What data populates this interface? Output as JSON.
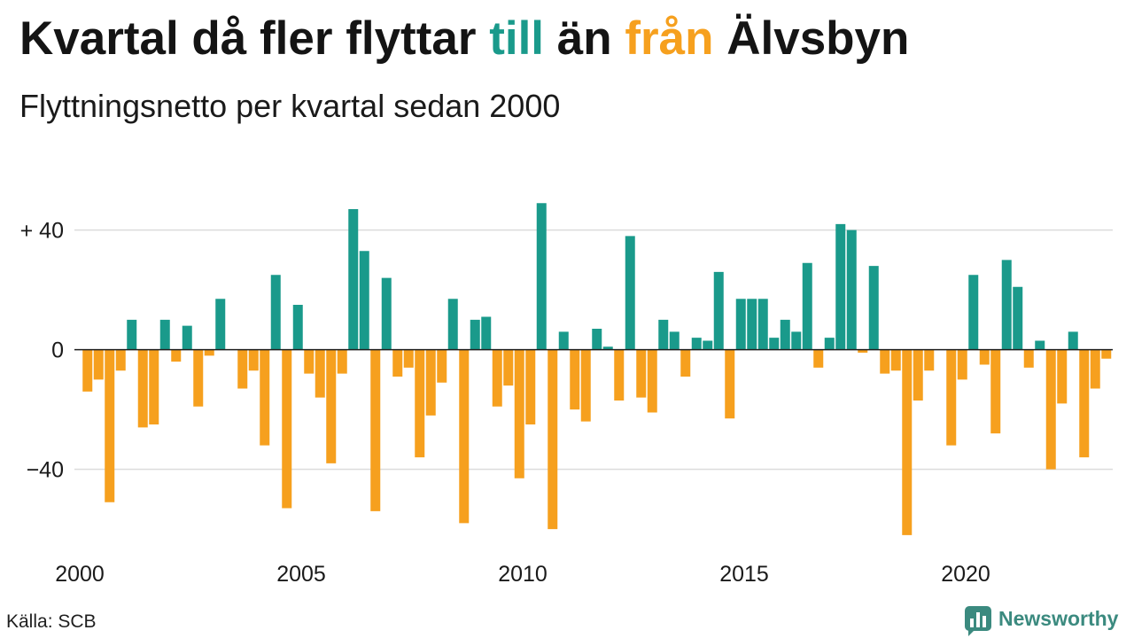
{
  "chart_data": {
    "type": "bar",
    "title": {
      "start": "Kvartal då fler flyttar",
      "positive_word": "till",
      "middle": "än",
      "negative_word": "från",
      "end": "Älvsbyn"
    },
    "subtitle": "Flyttningsnetto per kvartal sedan 2000",
    "x_ticks": [
      2000,
      2005,
      2010,
      2015,
      2020
    ],
    "y_ticks": [
      {
        "value": 40,
        "label": "+ 40"
      },
      {
        "value": 0,
        "label": "0"
      },
      {
        "value": -40,
        "label": "−40"
      }
    ],
    "xlim": [
      "2000Q1",
      "2023Q1"
    ],
    "ylim": [
      -65,
      55
    ],
    "grid": true,
    "colors": {
      "positive": "#1a9a8b",
      "negative": "#f6a01e",
      "grid": "#dcdcdc",
      "baseline": "#1e1e1e"
    },
    "x": [
      "2000Q1",
      "2000Q2",
      "2000Q3",
      "2000Q4",
      "2001Q1",
      "2001Q2",
      "2001Q3",
      "2001Q4",
      "2002Q1",
      "2002Q2",
      "2002Q3",
      "2002Q4",
      "2003Q1",
      "2003Q2",
      "2003Q3",
      "2003Q4",
      "2004Q1",
      "2004Q2",
      "2004Q3",
      "2004Q4",
      "2005Q1",
      "2005Q2",
      "2005Q3",
      "2005Q4",
      "2006Q1",
      "2006Q2",
      "2006Q3",
      "2006Q4",
      "2007Q1",
      "2007Q2",
      "2007Q3",
      "2007Q4",
      "2008Q1",
      "2008Q2",
      "2008Q3",
      "2008Q4",
      "2009Q1",
      "2009Q2",
      "2009Q3",
      "2009Q4",
      "2010Q1",
      "2010Q2",
      "2010Q3",
      "2010Q4",
      "2011Q1",
      "2011Q2",
      "2011Q3",
      "2011Q4",
      "2012Q1",
      "2012Q2",
      "2012Q3",
      "2012Q4",
      "2013Q1",
      "2013Q2",
      "2013Q3",
      "2013Q4",
      "2014Q1",
      "2014Q2",
      "2014Q3",
      "2014Q4",
      "2015Q1",
      "2015Q2",
      "2015Q3",
      "2015Q4",
      "2016Q1",
      "2016Q2",
      "2016Q3",
      "2016Q4",
      "2017Q1",
      "2017Q2",
      "2017Q3",
      "2017Q4",
      "2018Q1",
      "2018Q2",
      "2018Q3",
      "2018Q4",
      "2019Q1",
      "2019Q2",
      "2019Q3",
      "2019Q4",
      "2020Q1",
      "2020Q2",
      "2020Q3",
      "2020Q4",
      "2021Q1",
      "2021Q2",
      "2021Q3",
      "2021Q4",
      "2022Q1",
      "2022Q2",
      "2022Q3",
      "2022Q4",
      "2023Q1"
    ],
    "values": [
      -14,
      -10,
      -51,
      -7,
      10,
      -26,
      -25,
      10,
      -4,
      8,
      -19,
      -2,
      17,
      0,
      -13,
      -7,
      -32,
      25,
      -53,
      15,
      -8,
      -16,
      -38,
      -8,
      47,
      33,
      -54,
      24,
      -9,
      -6,
      -36,
      -22,
      -11,
      17,
      -58,
      10,
      11,
      -19,
      -12,
      -43,
      -25,
      49,
      -60,
      6,
      -20,
      -24,
      7,
      1,
      -17,
      38,
      -16,
      -21,
      10,
      6,
      -9,
      4,
      3,
      26,
      -23,
      17,
      17,
      17,
      4,
      10,
      6,
      29,
      -6,
      4,
      42,
      40,
      -1,
      28,
      -8,
      -7,
      -62,
      -17,
      -7,
      0,
      -32,
      -10,
      25,
      -5,
      -28,
      30,
      21,
      -6,
      3,
      -40,
      -18,
      6,
      -36,
      -13,
      -3
    ]
  },
  "footer": {
    "source": "Källa: SCB"
  },
  "logo": {
    "text": "Newsworthy",
    "icon": "bar-chart-speech-bubble-icon",
    "color": "#3b8a7f"
  }
}
